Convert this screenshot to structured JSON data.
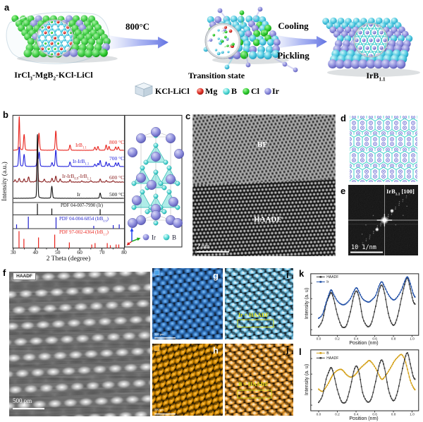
{
  "colors": {
    "mg": "#e02f25",
    "b_atom": "#57dbd8",
    "cl": "#2fcc30",
    "ir": "#8d8ddc",
    "arrow": "#7d8ce8",
    "haadf_line": "#3c3c3c",
    "ir_line": "#2553a8",
    "b_line": "#d4a017",
    "overlay_yellow": "#e3e312"
  },
  "panel_letters": {
    "a": "a",
    "b": "b",
    "c": "c",
    "d": "d",
    "e": "e",
    "f": "f",
    "g": "g",
    "h": "h",
    "i": "i",
    "j": "j",
    "k": "k",
    "l": "l"
  },
  "panel_a": {
    "reactant_parts": [
      "IrCl",
      "3",
      "-MgB",
      "2",
      "-KCl-LiCl"
    ],
    "arrow1_label": "800°C",
    "arrow2_top": "Cooling",
    "arrow2_bottom": "Pickling",
    "intermediate_label": "Transition state",
    "product_parts": [
      "IrB",
      "1.1"
    ],
    "legend": [
      {
        "label": "KCl-LiCl",
        "icon": "cube"
      },
      {
        "label": "Mg",
        "icon": "sphere",
        "color": "#e02f25"
      },
      {
        "label": "B",
        "icon": "sphere",
        "color": "#57dbd8"
      },
      {
        "label": "Cl",
        "icon": "sphere",
        "color": "#2fcc30"
      },
      {
        "label": "Ir",
        "icon": "sphere",
        "color": "#8d8ddc"
      }
    ]
  },
  "panel_c": {
    "label_top": "BF",
    "label_bottom": "HAADF",
    "scalebar": "2 nm"
  },
  "panel_e": {
    "title_parts": [
      "IrB",
      "1.1",
      "  [100]"
    ],
    "scalebar": "10  1/nm"
  },
  "panel_f": {
    "badge": "HAADF",
    "scalebar": "500 pm"
  },
  "panel_g": {
    "scalebar": "500 pm"
  },
  "panel_h": {
    "scalebar": "500 pm"
  },
  "panel_i": {
    "overlay": "Ir + HAADF"
  },
  "panel_j": {
    "overlay": "B + HAADF"
  },
  "chart_data": [
    {
      "id": "xrd",
      "type": "line",
      "xlabel": "2 Theta (degree)",
      "ylabel": "Intensity (a.u.)",
      "xlim": [
        30,
        80
      ],
      "x_ticks": [
        "30",
        "40",
        "50",
        "60",
        "70",
        "80"
      ],
      "series": [
        {
          "name_parts": [
            "IrB",
            "1.1"
          ],
          "temp": "800 °C",
          "color": "#e8231c",
          "base": 213,
          "peaks": [
            [
              32.7,
              45
            ],
            [
              34.9,
              21
            ],
            [
              41.6,
              23
            ],
            [
              49.2,
              26
            ],
            [
              55.6,
              7
            ],
            [
              66.8,
              4
            ],
            [
              68.2,
              5
            ],
            [
              71.9,
              7
            ],
            [
              73.2,
              5
            ],
            [
              76.2,
              4.5
            ],
            [
              77.4,
              4.5
            ]
          ]
        },
        {
          "name_parts": [
            "Ir-IrB",
            "1.1"
          ],
          "temp": "700 °C",
          "color": "#2222dd",
          "base": 236,
          "peaks": [
            [
              32.7,
              26
            ],
            [
              34.9,
              16
            ],
            [
              40.9,
              12
            ],
            [
              41.7,
              19
            ],
            [
              47.5,
              5
            ],
            [
              49.2,
              22
            ],
            [
              55.6,
              6
            ],
            [
              66.8,
              3
            ],
            [
              68.2,
              4
            ],
            [
              69.2,
              8
            ],
            [
              71.9,
              6
            ],
            [
              73.2,
              4
            ],
            [
              76.2,
              5
            ],
            [
              77.4,
              5
            ]
          ]
        },
        {
          "name_parts": [
            "Ir-IrB",
            "0.9",
            "-IrB",
            "1.1"
          ],
          "temp": "600 °C",
          "color": "#8a1f1f",
          "base": 258,
          "peaks": [
            [
              30.8,
              3
            ],
            [
              32.7,
              5
            ],
            [
              34.9,
              4
            ],
            [
              36.9,
              7
            ],
            [
              40.9,
              52
            ],
            [
              44.0,
              4
            ],
            [
              47.5,
              5
            ],
            [
              49.2,
              8
            ],
            [
              51.2,
              4
            ],
            [
              55.6,
              3
            ],
            [
              61.0,
              1.5
            ],
            [
              65.0,
              2
            ],
            [
              69.2,
              4
            ],
            [
              72.0,
              2
            ],
            [
              75.0,
              2
            ]
          ]
        },
        {
          "name_parts": [
            "Ir"
          ],
          "temp": "500 °C",
          "color": "#111111",
          "base": 281,
          "peaks": [
            [
              40.9,
              86
            ],
            [
              47.4,
              16
            ],
            [
              69.2,
              7
            ]
          ]
        }
      ],
      "references": [
        {
          "label_parts": [
            "PDF 04-007-7990 (Ir)"
          ],
          "color": "#111111",
          "band": [
            287,
            304.5
          ],
          "sticks": [
            [
              40.9,
              16
            ],
            [
              47.4,
              9
            ],
            [
              69.2,
              8
            ]
          ]
        },
        {
          "label_parts": [
            "PDF 04-004-6854 (IrB",
            "0.9",
            ")"
          ],
          "color": "#2222cc",
          "band": [
            304.5,
            324
          ],
          "sticks": [
            [
              31.5,
              6
            ],
            [
              36.8,
              17
            ],
            [
              49.3,
              16
            ],
            [
              66.3,
              4
            ],
            [
              75.1,
              5
            ],
            [
              77.8,
              6
            ]
          ]
        },
        {
          "label_parts": [
            "PDF 97-002-4364 (IrB",
            "1.1",
            ")"
          ],
          "color": "#e8231c",
          "band": [
            324,
            351.5
          ],
          "sticks": [
            [
              32.6,
              24
            ],
            [
              34.8,
              13
            ],
            [
              41.4,
              15
            ],
            [
              48.7,
              19
            ],
            [
              55.3,
              8
            ],
            [
              65.4,
              5
            ],
            [
              66.9,
              7
            ],
            [
              72.4,
              7
            ],
            [
              73.8,
              4
            ],
            [
              76.4,
              5
            ],
            [
              77.6,
              5
            ]
          ]
        }
      ],
      "inset_legend": [
        {
          "label": "Ir",
          "color": "#8d8ddc"
        },
        {
          "label": "B",
          "color": "#57dbd8"
        }
      ]
    },
    {
      "id": "profile_k",
      "type": "line",
      "xlabel": "Position (nm)",
      "ylabel": "Intensity (a. u)",
      "x_ticks": [
        "0.0",
        "0.2",
        "0.4",
        "0.6",
        "0.8",
        "1.0"
      ],
      "x": [
        0.0,
        0.04,
        0.08,
        0.115,
        0.135,
        0.16,
        0.2,
        0.24,
        0.27,
        0.3,
        0.34,
        0.375,
        0.405,
        0.435,
        0.47,
        0.51,
        0.54,
        0.57,
        0.61,
        0.645,
        0.675,
        0.705,
        0.745,
        0.78,
        0.81,
        0.845,
        0.885,
        0.92,
        0.95,
        0.98,
        1.01,
        1.03
      ],
      "series": [
        {
          "name": "HAADF",
          "color": "#3c3c3c",
          "y": [
            0.1,
            0.22,
            0.52,
            0.68,
            0.73,
            0.62,
            0.33,
            0.13,
            0.09,
            0.14,
            0.38,
            0.66,
            0.76,
            0.62,
            0.28,
            0.13,
            0.11,
            0.2,
            0.48,
            0.76,
            0.87,
            0.72,
            0.35,
            0.17,
            0.14,
            0.3,
            0.62,
            0.88,
            1.0,
            0.8,
            0.58,
            0.52
          ]
        },
        {
          "name": "Ir",
          "color": "#2553a8",
          "y": [
            0.26,
            0.33,
            0.55,
            0.72,
            0.78,
            0.7,
            0.58,
            0.52,
            0.51,
            0.54,
            0.62,
            0.75,
            0.82,
            0.73,
            0.62,
            0.57,
            0.56,
            0.6,
            0.68,
            0.85,
            0.93,
            0.84,
            0.7,
            0.62,
            0.6,
            0.66,
            0.78,
            0.94,
            1.02,
            0.9,
            0.72,
            0.65
          ]
        }
      ]
    },
    {
      "id": "profile_l",
      "type": "line",
      "xlabel": "Position (nm)",
      "ylabel": "Intensity (a. u)",
      "x_ticks": [
        "0.0",
        "0.2",
        "0.4",
        "0.6",
        "0.8",
        "1.0"
      ],
      "x": [
        0.0,
        0.04,
        0.08,
        0.115,
        0.135,
        0.16,
        0.2,
        0.24,
        0.27,
        0.3,
        0.34,
        0.375,
        0.405,
        0.435,
        0.47,
        0.51,
        0.54,
        0.57,
        0.61,
        0.645,
        0.675,
        0.705,
        0.745,
        0.78,
        0.81,
        0.845,
        0.885,
        0.92,
        0.95,
        0.98,
        1.01,
        1.03
      ],
      "series": [
        {
          "name": "B",
          "color": "#d4a017",
          "y": [
            0.34,
            0.3,
            0.38,
            0.48,
            0.55,
            0.62,
            0.68,
            0.7,
            0.66,
            0.6,
            0.56,
            0.58,
            0.63,
            0.7,
            0.76,
            0.82,
            0.86,
            0.82,
            0.72,
            0.6,
            0.52,
            0.56,
            0.66,
            0.76,
            0.85,
            0.92,
            0.97,
            0.88,
            0.7,
            0.5,
            0.38,
            0.33
          ]
        },
        {
          "name": "HAADF",
          "color": "#3c3c3c",
          "y": [
            0.1,
            0.22,
            0.52,
            0.68,
            0.73,
            0.62,
            0.33,
            0.13,
            0.09,
            0.14,
            0.38,
            0.66,
            0.76,
            0.62,
            0.28,
            0.13,
            0.11,
            0.2,
            0.48,
            0.76,
            0.87,
            0.72,
            0.35,
            0.17,
            0.14,
            0.3,
            0.62,
            0.88,
            1.0,
            0.8,
            0.58,
            0.52
          ]
        }
      ]
    }
  ]
}
